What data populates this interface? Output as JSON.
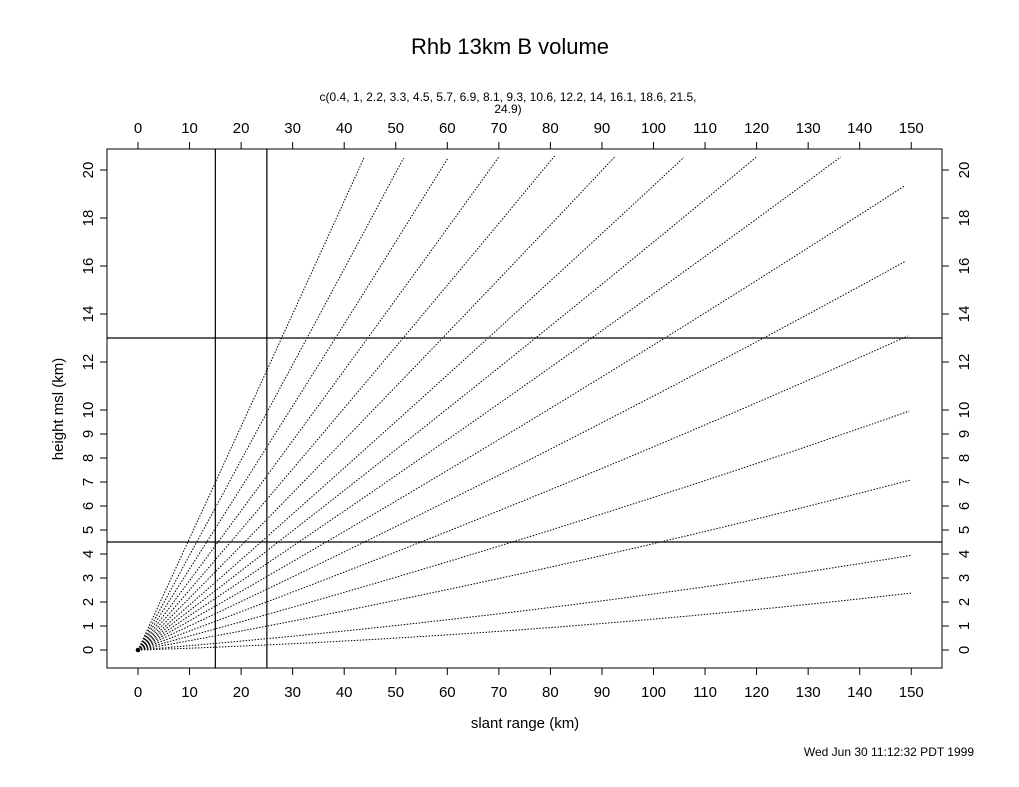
{
  "title": "Rhb 13km B volume",
  "subtitle_line1": "c(0.4, 1, 2.2, 3.3, 4.5, 5.7, 6.9, 8.1, 9.3, 10.6, 12.2, 14, 16.1, 18.6, 21.5,",
  "subtitle_line2": "24.9)",
  "xlabel": "slant range (km)",
  "ylabel": "height msl (km)",
  "footer": "Wed Jun 30 11:12:32 PDT 1999",
  "chart_data": {
    "type": "line",
    "title": "Rhb 13km B volume",
    "xlabel": "slant range (km)",
    "ylabel": "height msl (km)",
    "xlim": [
      -6,
      156
    ],
    "ylim": [
      -1,
      20.7
    ],
    "x_ticks": [
      0,
      10,
      20,
      30,
      40,
      50,
      60,
      70,
      80,
      90,
      100,
      110,
      120,
      130,
      140,
      150
    ],
    "y_ticks": [
      0,
      1,
      2,
      3,
      4,
      5,
      6,
      7,
      8,
      9,
      10,
      12,
      14,
      16,
      18,
      20
    ],
    "elevation_angles_deg": [
      0.4,
      1,
      2.2,
      3.3,
      4.5,
      5.7,
      6.9,
      8.1,
      9.3,
      10.6,
      12.2,
      14,
      16.1,
      18.6,
      21.5,
      24.9
    ],
    "max_range_km": 150,
    "reference_lines": {
      "vertical_x": [
        15,
        25
      ],
      "horizontal_y": [
        4.5,
        13
      ]
    },
    "y_scale": "piecewise: linear 0-10 stretched, 10-20 compressed"
  }
}
